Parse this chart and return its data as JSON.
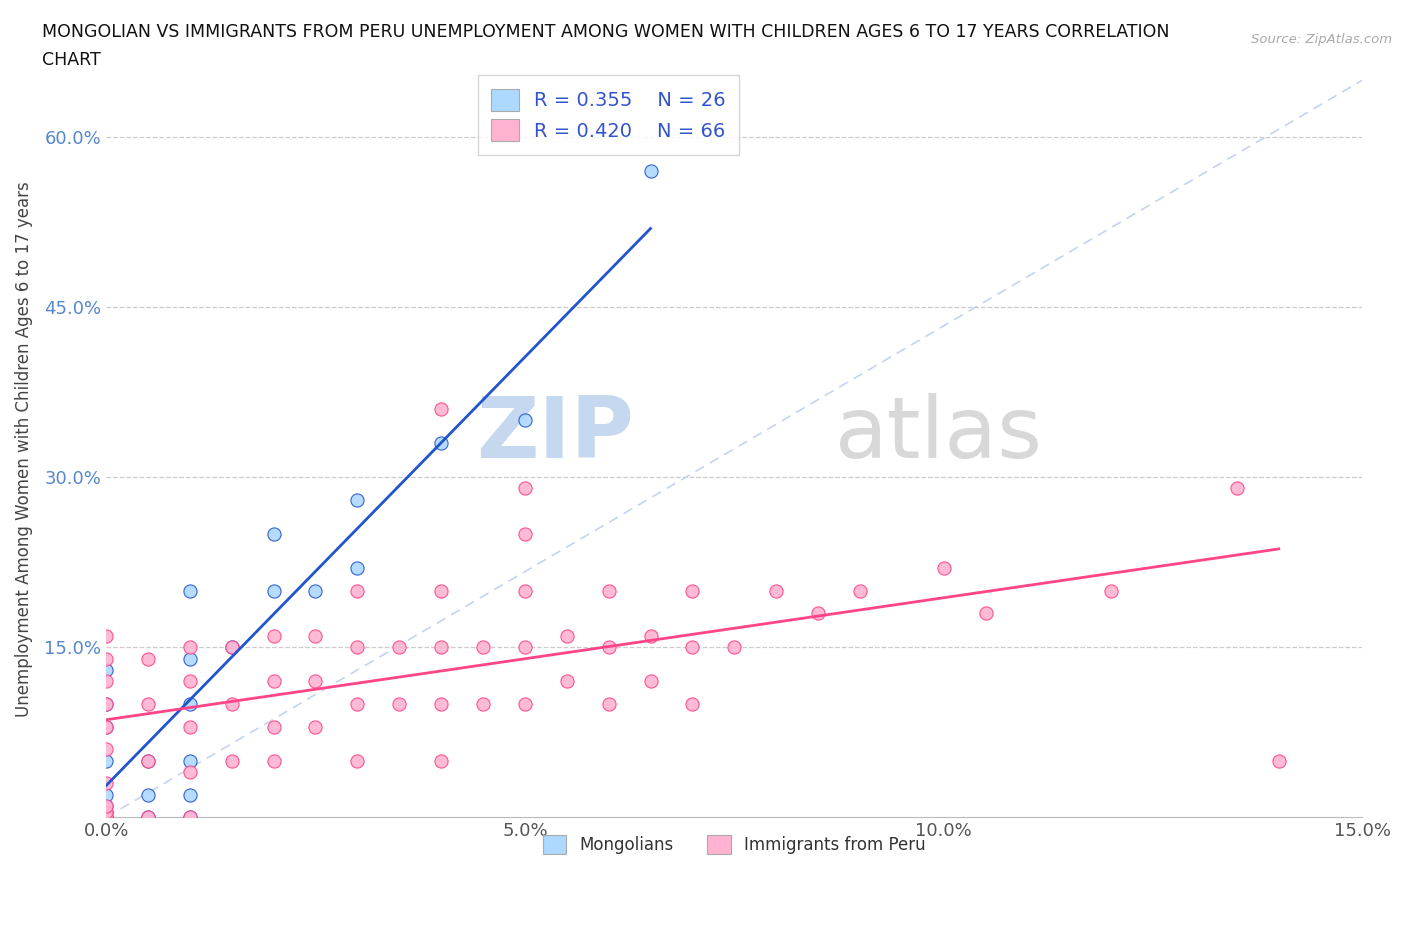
{
  "title_line1": "MONGOLIAN VS IMMIGRANTS FROM PERU UNEMPLOYMENT AMONG WOMEN WITH CHILDREN AGES 6 TO 17 YEARS CORRELATION",
  "title_line2": "CHART",
  "source": "Source: ZipAtlas.com",
  "ylabel": "Unemployment Among Women with Children Ages 6 to 17 years",
  "xlim": [
    0.0,
    0.15
  ],
  "ylim": [
    0.0,
    0.65
  ],
  "xtick_labels": [
    "0.0%",
    "5.0%",
    "10.0%",
    "15.0%"
  ],
  "xtick_vals": [
    0.0,
    0.05,
    0.1,
    0.15
  ],
  "ytick_labels": [
    "15.0%",
    "30.0%",
    "45.0%",
    "60.0%"
  ],
  "ytick_vals": [
    0.15,
    0.3,
    0.45,
    0.6
  ],
  "mongolian_color": "#add8ff",
  "peru_color": "#ffb3d1",
  "mongolian_line_color": "#2255cc",
  "peru_line_color": "#ff4488",
  "diagonal_color": "#bbccee",
  "legend_R1": "R = 0.355",
  "legend_N1": "N = 26",
  "legend_R2": "R = 0.420",
  "legend_N2": "N = 66",
  "watermark_zip": "ZIP",
  "watermark_atlas": "atlas",
  "background_color": "#ffffff",
  "mongolian_x": [
    0.0,
    0.0,
    0.0,
    0.0,
    0.0,
    0.0,
    0.0,
    0.0,
    0.005,
    0.005,
    0.005,
    0.01,
    0.01,
    0.01,
    0.01,
    0.01,
    0.01,
    0.015,
    0.02,
    0.02,
    0.025,
    0.03,
    0.03,
    0.04,
    0.05,
    0.065
  ],
  "mongolian_y": [
    0.0,
    0.005,
    0.01,
    0.02,
    0.05,
    0.08,
    0.1,
    0.13,
    0.0,
    0.02,
    0.05,
    0.0,
    0.02,
    0.05,
    0.1,
    0.14,
    0.2,
    0.15,
    0.2,
    0.25,
    0.2,
    0.22,
    0.28,
    0.33,
    0.35,
    0.57
  ],
  "peru_x": [
    0.0,
    0.0,
    0.0,
    0.0,
    0.0,
    0.0,
    0.0,
    0.0,
    0.0,
    0.0,
    0.005,
    0.005,
    0.005,
    0.005,
    0.01,
    0.01,
    0.01,
    0.01,
    0.01,
    0.015,
    0.015,
    0.015,
    0.02,
    0.02,
    0.02,
    0.02,
    0.025,
    0.025,
    0.025,
    0.03,
    0.03,
    0.03,
    0.03,
    0.035,
    0.035,
    0.04,
    0.04,
    0.04,
    0.04,
    0.04,
    0.045,
    0.045,
    0.05,
    0.05,
    0.05,
    0.05,
    0.05,
    0.055,
    0.055,
    0.06,
    0.06,
    0.06,
    0.065,
    0.065,
    0.07,
    0.07,
    0.07,
    0.075,
    0.08,
    0.085,
    0.09,
    0.1,
    0.105,
    0.12,
    0.135,
    0.14
  ],
  "peru_y": [
    0.0,
    0.005,
    0.01,
    0.03,
    0.06,
    0.08,
    0.1,
    0.12,
    0.14,
    0.16,
    0.0,
    0.05,
    0.1,
    0.14,
    0.0,
    0.04,
    0.08,
    0.12,
    0.15,
    0.05,
    0.1,
    0.15,
    0.05,
    0.08,
    0.12,
    0.16,
    0.08,
    0.12,
    0.16,
    0.05,
    0.1,
    0.15,
    0.2,
    0.1,
    0.15,
    0.05,
    0.1,
    0.15,
    0.2,
    0.36,
    0.1,
    0.15,
    0.1,
    0.15,
    0.2,
    0.25,
    0.29,
    0.12,
    0.16,
    0.1,
    0.15,
    0.2,
    0.12,
    0.16,
    0.1,
    0.15,
    0.2,
    0.15,
    0.2,
    0.18,
    0.2,
    0.22,
    0.18,
    0.2,
    0.29,
    0.05
  ]
}
